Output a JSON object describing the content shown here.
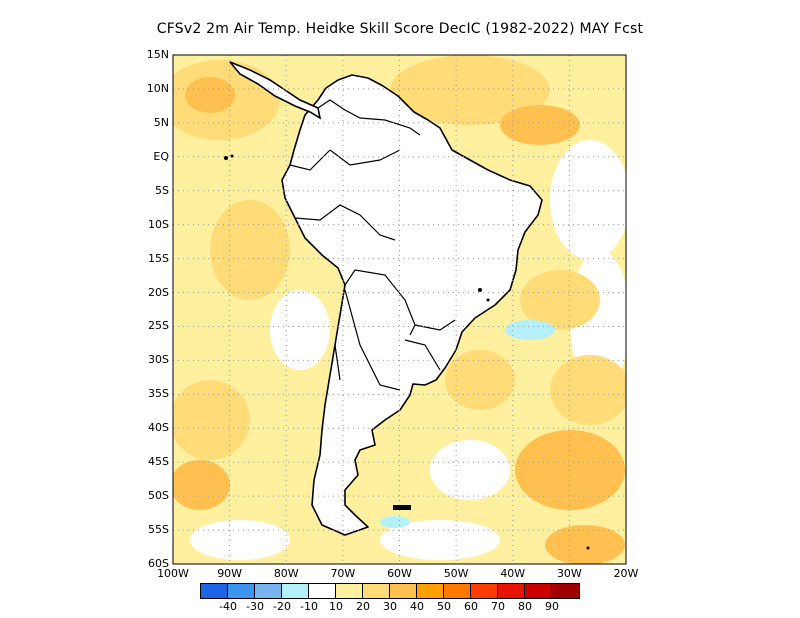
{
  "title": "CFSv2  2m Air Temp. Heidke Skill Score DecIC (1982-2022) MAY Fcst",
  "lat_labels": [
    "15N",
    "10N",
    "5N",
    "EQ",
    "5S",
    "10S",
    "15S",
    "20S",
    "25S",
    "30S",
    "35S",
    "40S",
    "45S",
    "50S",
    "55S",
    "60S"
  ],
  "lat_values": [
    15,
    10,
    5,
    0,
    -5,
    -10,
    -15,
    -20,
    -25,
    -30,
    -35,
    -40,
    -45,
    -50,
    -55,
    -60
  ],
  "lon_labels": [
    "100W",
    "90W",
    "80W",
    "70W",
    "60W",
    "50W",
    "40W",
    "30W",
    "20W"
  ],
  "lon_values": [
    -100,
    -90,
    -80,
    -70,
    -60,
    -50,
    -40,
    -30,
    -20
  ],
  "map_extent": {
    "lon_min": -100,
    "lon_max": -20,
    "lat_min": -60,
    "lat_max": 15
  },
  "gridlines": true,
  "colorbar": {
    "colors": [
      "#1e64e6",
      "#3c96f0",
      "#78b4f0",
      "#b4f0fa",
      "#ffffff",
      "#fff0a0",
      "#ffdc78",
      "#ffc050",
      "#ffa000",
      "#ff7800",
      "#ff3c00",
      "#e61400",
      "#c80000",
      "#a00000"
    ],
    "labels": [
      "-40",
      "-30",
      "-20",
      "-10",
      "10",
      "20",
      "30",
      "40",
      "50",
      "60",
      "70",
      "80",
      "90"
    ]
  }
}
